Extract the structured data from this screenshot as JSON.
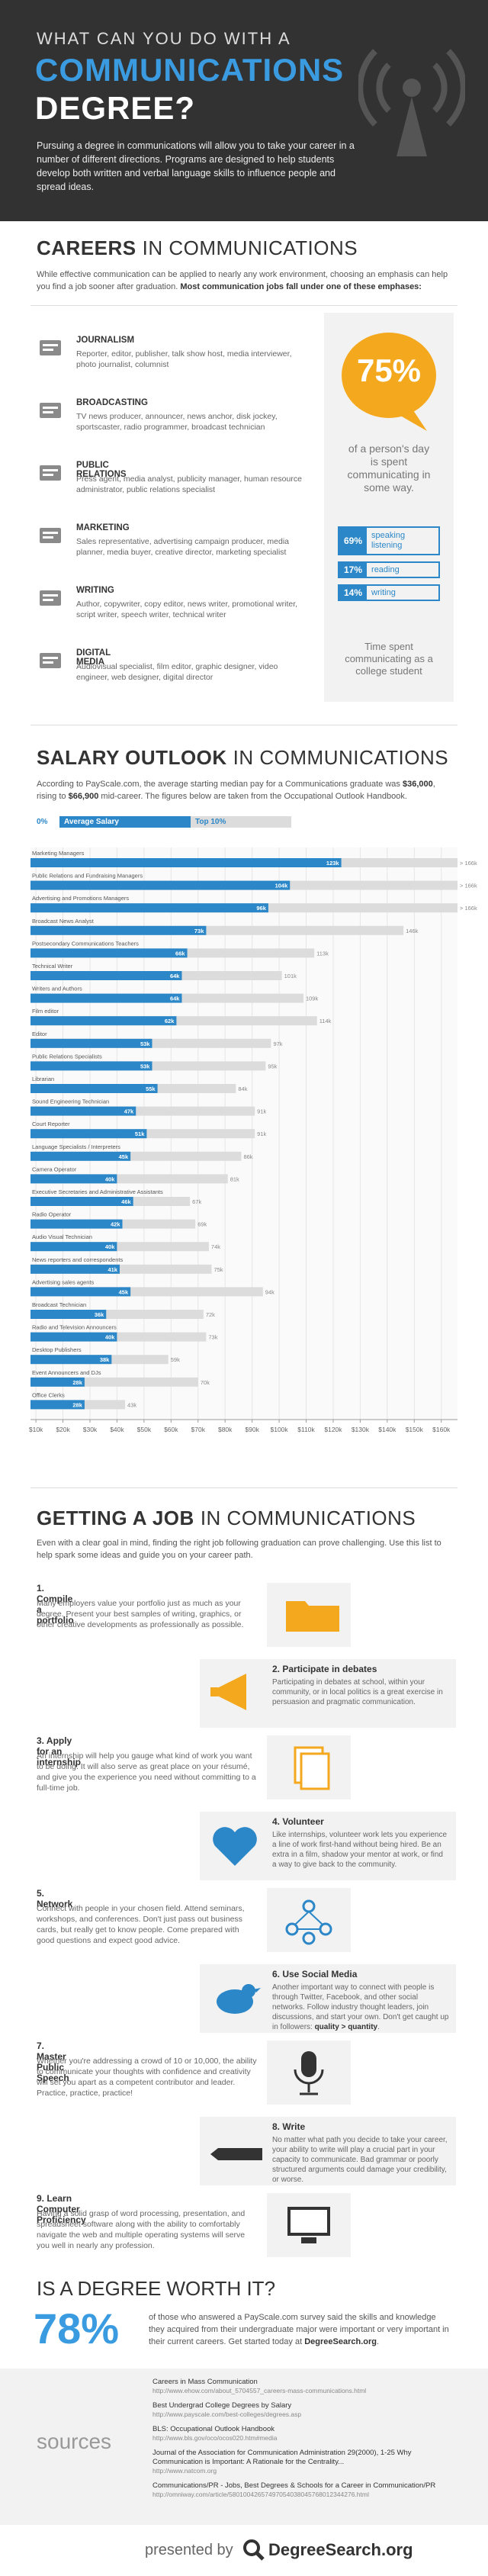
{
  "header": {
    "line1": "WHAT CAN YOU DO WITH A",
    "line2": "COMMUNICATIONS",
    "line3": "DEGREE?",
    "text": "Pursuing a degree in communications will allow you to take your career in a number of different directions. Programs are designed to help students develop both written and verbal language skills to influence people and spread ideas."
  },
  "careers": {
    "title_bold": "CAREERS",
    "title_rest": "IN COMMUNICATIONS",
    "intro": [
      "While effective communication can be applied to nearly any work environment, choosing an emphasis can help you find a job sooner after graduation. ",
      "Most communication jobs fall under one of these emphases:"
    ],
    "items": [
      {
        "name": "JOURNALISM",
        "text": "Reporter, editor, publisher, talk show host, media interviewer, photo journalist, columnist"
      },
      {
        "name": "BROADCASTING",
        "text": "TV news producer, announcer, news anchor, disk jockey, sportscaster, radio programmer, broadcast technician"
      },
      {
        "name": "PUBLIC RELATIONS",
        "text": "Press agent, media analyst, publicity manager, human resource administrator, public relations specialist"
      },
      {
        "name": "MARKETING",
        "text": "Sales representative, advertising campaign producer, media planner, media buyer, creative director, marketing specialist"
      },
      {
        "name": "WRITING",
        "text": "Author, copywriter, copy editor, news writer, promotional writer, script writer, speech writer, technical writer"
      },
      {
        "name": "DIGITAL MEDIA",
        "text": "Audiovisual specialist, film editor, graphic designer, video engineer, web designer, digital director"
      }
    ],
    "stat": "75%",
    "stat_text": "of a person's day is spent communicating in some way.",
    "breakdown": [
      {
        "value": "69%",
        "label": "speaking listening"
      },
      {
        "value": "17%",
        "label": "reading"
      },
      {
        "value": "14%",
        "label": "writing"
      }
    ],
    "breakdown_caption": "Time spent communicating as a college student"
  },
  "salary": {
    "title_bold": "SALARY OUTLOOK",
    "title_rest": "IN COMMUNICATIONS",
    "text": [
      "According to PayScale.com, the average starting median pay for a Communications graduate was ",
      "$36,000",
      ", rising to ",
      "$66,900",
      " mid-career. The figures below are taken from the Occupational Outlook Handbook."
    ],
    "legend_start": "0%"
  },
  "chart_data": {
    "type": "bar",
    "orientation": "horizontal",
    "categories": [
      "Marketing Managers",
      "Public Relations and Fundraising Managers",
      "Advertising and Promotions Managers",
      "Broadcast News Analyst",
      "Postsecondary Communications Teachers",
      "Technical Writer",
      "Writers and Authors",
      "Film editor",
      "Editor",
      "Public Relations Specialists",
      "Librarian",
      "Sound Engineering Technician",
      "Court Reporter",
      "Language Specialists / Interpreters",
      "Camera Operator",
      "Executive Secretaries and Administrative Assistants",
      "Radio Operator",
      "Audio Visual Technician",
      "News reporters and correspondents",
      "Advertising sales agents",
      "Broadcast Technician",
      "Radio and Television Announcers",
      "Desktop Publishers",
      "Event Announcers and DJs",
      "Office Clerks"
    ],
    "series": [
      {
        "name": "Average Salary",
        "color": "#2b87c8",
        "values": [
          123,
          104,
          96,
          73,
          66,
          64,
          64,
          62,
          53,
          53,
          55,
          47,
          51,
          45,
          40,
          46,
          42,
          40,
          41,
          45,
          36,
          40,
          38,
          28,
          28
        ],
        "value_labels": [
          "123k",
          "104k",
          "96k",
          "73k",
          "66k",
          "64k",
          "64k",
          "62k",
          "53k",
          "53k",
          "55k",
          "47k",
          "51k",
          "45k",
          "40k",
          "46k",
          "42k",
          "40k",
          "41k",
          "45k",
          "36k",
          "40k",
          "38k",
          "28k",
          "28k"
        ]
      },
      {
        "name": "Top 10%",
        "color": "#dcdcdc",
        "values": [
          166,
          166,
          166,
          146,
          113,
          101,
          109,
          114,
          97,
          95,
          84,
          91,
          91,
          86,
          81,
          67,
          69,
          74,
          75,
          94,
          72,
          73,
          59,
          70,
          43
        ],
        "value_labels": [
          "> 166k",
          "> 166k",
          "> 166k",
          "146k",
          "113k",
          "101k",
          "109k",
          "114k",
          "97k",
          "95k",
          "84k",
          "91k",
          "91k",
          "86k",
          "81k",
          "67k",
          "69k",
          "74k",
          "75k",
          "94k",
          "72k",
          "73k",
          "59k",
          "70k",
          "43k"
        ]
      }
    ],
    "xlim": [
      8,
      166
    ],
    "xticks": [
      {
        "value": 10,
        "label": "$10k"
      },
      {
        "value": 20,
        "label": "$20k"
      },
      {
        "value": 30,
        "label": "$30k"
      },
      {
        "value": 40,
        "label": "$40k"
      },
      {
        "value": 50,
        "label": "$50k"
      },
      {
        "value": 60,
        "label": "$60k"
      },
      {
        "value": 70,
        "label": "$70k"
      },
      {
        "value": 80,
        "label": "$80k"
      },
      {
        "value": 90,
        "label": "$90k"
      },
      {
        "value": 100,
        "label": "$100k"
      },
      {
        "value": 110,
        "label": "$110k"
      },
      {
        "value": 120,
        "label": "$120k"
      },
      {
        "value": 130,
        "label": "$130k"
      },
      {
        "value": 140,
        "label": "$140k"
      },
      {
        "value": 150,
        "label": "$150k"
      },
      {
        "value": 160,
        "label": "$160k"
      }
    ],
    "grid": true
  },
  "job": {
    "title_bold": "GETTING A JOB",
    "title_rest": "IN COMMUNICATIONS",
    "intro": "Even with a clear goal in mind, finding the right job following graduation can prove challenging. Use this list to help spark some ideas and guide you on your career path.",
    "steps": [
      {
        "title": "1. Compile a portfolio",
        "text": "Many employers value your portfolio just as much as your degree. Present your best samples of writing, graphics, or other creative developments as professionally as possible."
      },
      {
        "title": "2. Participate in debates",
        "text": "Participating in debates at school, within your community, or in local politics is a great exercise in persuasion and pragmatic communication."
      },
      {
        "title": "3. Apply for an internship",
        "text": "An internship will help you gauge what kind of work you want to be doing. It will also serve as great place on your résumé, and give you the experience you need without committing to a full-time job."
      },
      {
        "title": "4. Volunteer",
        "text": "Like internships, volunteer work lets you experience a line of work first-hand without being hired. Be an extra in a film, shadow your mentor at work, or find a way to give back to the community."
      },
      {
        "title": "5. Network",
        "text": "Connect with people in your chosen field. Attend seminars, workshops, and conferences. Don't just pass out business cards, but really get to know people. Come prepared with good questions and expect good advice."
      },
      {
        "title": "6. Use Social Media",
        "text": [
          "Another important way to connect with people is through Twitter, Facebook, and other social networks. Follow industry thought leaders, join discussions, and start your own. Don't get caught up in followers: ",
          "quality > quantity",
          "."
        ]
      },
      {
        "title": "7. Master Public Speech",
        "text": "Whether you're addressing a crowd of 10 or 10,000, the ability to communicate your thoughts with confidence and creativity will set you apart as a competent contributor and leader. Practice, practice, practice!"
      },
      {
        "title": "8. Write",
        "text": "No matter what path you decide to take your career, your ability to write will play a crucial part in your capacity to communicate. Bad grammar or poorly structured arguments could damage your credibility, or worse."
      },
      {
        "title": "9. Learn Computer Proficiency",
        "text": "Having a solid grasp of word processing, presentation, and spreadsheet software along with the ability to comfortably navigate the web and multiple operating systems will serve you well in nearly any profession."
      }
    ]
  },
  "worth": {
    "title": "IS A DEGREE WORTH IT?",
    "stat": "78%",
    "text": [
      "of those who answered a PayScale.com survey said the skills and knowledge they acquired from their undergraduate major were important or very important in their current careers. Get started today at ",
      "DegreeSearch.org",
      "."
    ]
  },
  "sources": {
    "title": "sources",
    "items": [
      {
        "title": "Careers in Mass Communication",
        "url": "http://www.ehow.com/about_5704557_careers-mass-communications.html"
      },
      {
        "title": "Best Undergrad College Degrees by Salary",
        "url": "http://www.payscale.com/best-colleges/degrees.asp"
      },
      {
        "title": "BLS: Occupational Outlook Handbook",
        "url": "http://www.bls.gov/oco/ocos020.htm#media"
      },
      {
        "title": "Journal of the Association for Communication Administration 29(2000), 1-25 Why Communication is Important: A Rationale for the Centrality...",
        "url": "http://www.natcom.org"
      },
      {
        "title": "Communications/PR - Jobs, Best Degrees & Schools for a Career in Communication/PR",
        "url": "http://omniway.com/article/58010042657497054038045768012344276.html"
      }
    ]
  },
  "footer": {
    "presented": "presented by",
    "brand": "DegreeSearch.org"
  }
}
